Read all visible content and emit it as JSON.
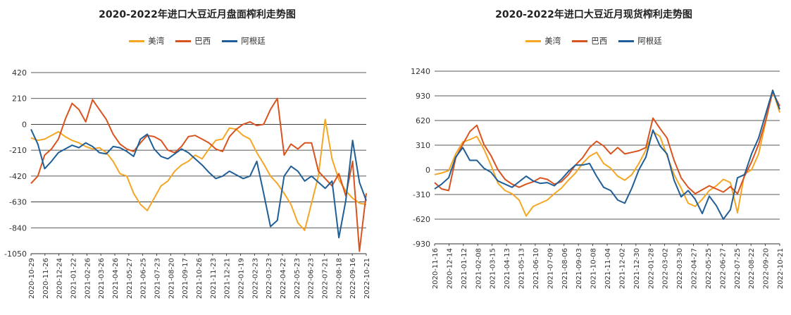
{
  "colors": {
    "us_gulf": "#F5A623",
    "brazil": "#D9531E",
    "argentina": "#1F5E96"
  },
  "chart_data": [
    {
      "type": "line",
      "title": "2020-2022年进口大豆近月盘面榨利走势图",
      "legend": [
        "美湾",
        "巴西",
        "阿根廷"
      ],
      "legend_position": "top-center",
      "ylim": [
        -1050,
        420
      ],
      "yticks": [
        "420",
        "210",
        "0",
        "-210",
        "-420",
        "-630",
        "-840",
        "-1050"
      ],
      "ytick_values": [
        420,
        210,
        0,
        -210,
        -420,
        -630,
        -840,
        -1050
      ],
      "xticks": [
        "2020-10-29",
        "2020-11-26",
        "2020-12-24",
        "2021-01-22",
        "2021-02-26",
        "2021-03-26",
        "2021-04-26",
        "2021-05-27",
        "2021-06-25",
        "2021-07-23",
        "2021-08-20",
        "2021-09-17",
        "2021-10-26",
        "2021-11-23",
        "2021-12-21",
        "2022-01-19",
        "2022-02-23",
        "2022-03-23",
        "2022-04-22",
        "2022-05-23",
        "2022-06-23",
        "2022-07-21",
        "2022-08-18",
        "2022-09-16",
        "2022-10-21"
      ],
      "grid": true,
      "series": [
        {
          "name": "美湾",
          "key": "us_gulf",
          "values": [
            -110,
            -130,
            -120,
            -90,
            -60,
            -100,
            -130,
            -150,
            -180,
            -200,
            -190,
            -230,
            -300,
            -400,
            -420,
            -560,
            -650,
            -700,
            -600,
            -500,
            -460,
            -380,
            -330,
            -300,
            -250,
            -280,
            -200,
            -130,
            -120,
            -30,
            -40,
            -90,
            -120,
            -230,
            -320,
            -420,
            -480,
            -560,
            -650,
            -800,
            -860,
            -640,
            -420,
            40,
            -280,
            -450,
            -540,
            -600,
            -640,
            -650
          ]
        },
        {
          "name": "巴西",
          "key": "brazil",
          "values": [
            -480,
            -420,
            -250,
            -200,
            -120,
            40,
            170,
            120,
            20,
            200,
            120,
            40,
            -80,
            -160,
            -200,
            -220,
            -150,
            -90,
            -100,
            -130,
            -210,
            -230,
            -180,
            -100,
            -90,
            -120,
            -150,
            -200,
            -220,
            -100,
            -40,
            0,
            20,
            -10,
            0,
            120,
            210,
            -250,
            -160,
            -200,
            -150,
            -150,
            -380,
            -440,
            -500,
            -400,
            -580,
            -300,
            -1030,
            -560
          ]
        },
        {
          "name": "阿根廷",
          "key": "argentina",
          "values": [
            -40,
            -160,
            -360,
            -300,
            -230,
            -200,
            -170,
            -190,
            -150,
            -180,
            -230,
            -240,
            -180,
            -190,
            -220,
            -260,
            -120,
            -80,
            -200,
            -260,
            -280,
            -240,
            -200,
            -230,
            -280,
            -330,
            -390,
            -440,
            -420,
            -380,
            -410,
            -440,
            -420,
            -300,
            -560,
            -830,
            -780,
            -420,
            -340,
            -380,
            -460,
            -420,
            -470,
            -520,
            -460,
            -920,
            -620,
            -130,
            -470,
            -620
          ]
        }
      ]
    },
    {
      "type": "line",
      "title": "2020-2022年进口大豆近月现货榨利走势图",
      "legend": [
        "美湾",
        "巴西",
        "阿根廷"
      ],
      "legend_position": "top-center",
      "ylim": [
        -930,
        1240
      ],
      "yticks": [
        "1240",
        "930",
        "620",
        "310",
        "0",
        "-310",
        "-620",
        "-930"
      ],
      "ytick_values": [
        1240,
        930,
        620,
        310,
        0,
        -310,
        -620,
        -930
      ],
      "xticks": [
        "2020-11-16",
        "2020-12-14",
        "2021-01-12",
        "2021-02-08",
        "2021-03-15",
        "2021-04-13",
        "2021-05-13",
        "2021-06-10",
        "2021-07-09",
        "2021-08-06",
        "2021-09-03",
        "2021-10-08",
        "2021-11-04",
        "2021-12-02",
        "2021-12-30",
        "2022-01-28",
        "2022-03-02",
        "2022-03-30",
        "2022-04-27",
        "2022-05-25",
        "2022-06-27",
        "2022-07-25",
        "2022-08-22",
        "2022-09-20",
        "2022-10-21"
      ],
      "grid": true,
      "series": [
        {
          "name": "美湾",
          "key": "us_gulf",
          "values": [
            -60,
            -40,
            -10,
            200,
            350,
            380,
            420,
            260,
            60,
            -170,
            -260,
            -300,
            -380,
            -580,
            -460,
            -420,
            -380,
            -300,
            -230,
            -130,
            -40,
            80,
            170,
            220,
            80,
            20,
            -80,
            -130,
            -60,
            80,
            250,
            480,
            420,
            180,
            -60,
            -230,
            -420,
            -460,
            -370,
            -260,
            -200,
            -120,
            -160,
            -540,
            -50,
            0,
            200,
            600,
            1000,
            720
          ]
        },
        {
          "name": "巴西",
          "key": "brazil",
          "values": [
            -160,
            -240,
            -260,
            150,
            320,
            480,
            560,
            320,
            180,
            0,
            -120,
            -180,
            -220,
            -180,
            -150,
            -100,
            -120,
            -180,
            -150,
            -60,
            60,
            150,
            280,
            360,
            300,
            200,
            280,
            200,
            220,
            240,
            280,
            650,
            520,
            400,
            120,
            -100,
            -220,
            -300,
            -250,
            -200,
            -240,
            -280,
            -210,
            -300,
            -80,
            100,
            320,
            620,
            980,
            800
          ]
        },
        {
          "name": "阿根廷",
          "key": "argentina",
          "values": [
            -240,
            -180,
            -100,
            160,
            280,
            120,
            120,
            20,
            -30,
            -140,
            -180,
            -220,
            -150,
            -80,
            -140,
            -170,
            -160,
            -200,
            -120,
            -20,
            60,
            60,
            80,
            -80,
            -220,
            -260,
            -380,
            -420,
            -230,
            0,
            160,
            500,
            300,
            200,
            -130,
            -340,
            -260,
            -370,
            -550,
            -330,
            -450,
            -620,
            -500,
            -100,
            -60,
            200,
            400,
            700,
            1000,
            760
          ]
        }
      ]
    }
  ]
}
